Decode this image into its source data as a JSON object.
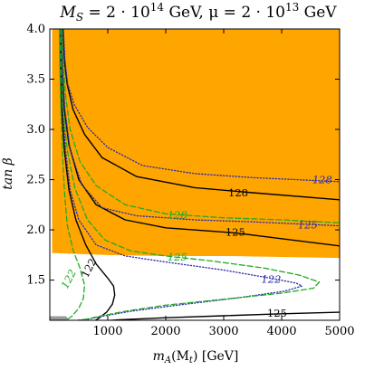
{
  "chart_data": {
    "type": "line",
    "title_parts": [
      "M",
      "S",
      " = 2 · 10",
      "14",
      " GeV, μ = 2 · 10",
      "13",
      " GeV"
    ],
    "xlabel_parts": [
      "m",
      "A",
      "(M",
      "t",
      ") [GeV]"
    ],
    "ylabel": "tan β",
    "xlim": [
      0,
      5000
    ],
    "ylim": [
      1.1,
      4.0
    ],
    "x_ticks": [
      1000,
      2000,
      3000,
      4000,
      5000
    ],
    "y_ticks": [
      1.5,
      2.0,
      2.5,
      3.0,
      3.5,
      4.0
    ],
    "x_tick_labels": [
      "1000",
      "2000",
      "3000",
      "4000",
      "5000"
    ],
    "y_tick_labels": [
      "1.5",
      "2.0",
      "2.5",
      "3.0",
      "3.5",
      "4.0"
    ],
    "grid": false,
    "colors": {
      "excluded_region": "#ffa500",
      "solid": "#000000",
      "dashed": "#22aa22",
      "dotted": "#2a2aaa",
      "gray_band": "#999999"
    },
    "regions": [
      {
        "color": "#ffa500",
        "polygon": [
          [
            40,
            4.0
          ],
          [
            5000,
            4.0
          ],
          [
            5000,
            1.72
          ],
          [
            3000,
            1.74
          ],
          [
            2000,
            1.74
          ],
          [
            1000,
            1.75
          ],
          [
            40,
            1.77
          ]
        ]
      },
      {
        "color": "#999999",
        "polygon": [
          [
            0,
            1.1
          ],
          [
            330,
            1.1
          ],
          [
            280,
            1.14
          ],
          [
            0,
            1.14
          ]
        ]
      }
    ],
    "series": [
      {
        "style": "solid",
        "label": "128",
        "label_at": [
          3250,
          2.37
        ],
        "color": "#000000",
        "points": [
          [
            225,
            4.0
          ],
          [
            250,
            3.7
          ],
          [
            300,
            3.45
          ],
          [
            400,
            3.2
          ],
          [
            600,
            2.95
          ],
          [
            900,
            2.72
          ],
          [
            1500,
            2.53
          ],
          [
            2500,
            2.42
          ],
          [
            3500,
            2.37
          ],
          [
            5000,
            2.3
          ]
        ]
      },
      {
        "style": "solid",
        "label": "125",
        "label_at": [
          3200,
          1.98
        ],
        "color": "#000000",
        "points": [
          [
            190,
            4.0
          ],
          [
            210,
            3.6
          ],
          [
            250,
            3.2
          ],
          [
            330,
            2.85
          ],
          [
            500,
            2.5
          ],
          [
            800,
            2.25
          ],
          [
            1300,
            2.1
          ],
          [
            2000,
            2.02
          ],
          [
            3200,
            1.97
          ],
          [
            5000,
            1.84
          ]
        ]
      },
      {
        "style": "solid",
        "label": "122",
        "label_at": [
          730,
          1.64
        ],
        "color": "#000000",
        "points": [
          [
            175,
            4.0
          ],
          [
            185,
            3.6
          ],
          [
            205,
            3.2
          ],
          [
            250,
            2.8
          ],
          [
            330,
            2.4
          ],
          [
            450,
            2.1
          ],
          [
            620,
            1.85
          ],
          [
            800,
            1.66
          ],
          [
            1000,
            1.52
          ],
          [
            1100,
            1.44
          ],
          [
            1120,
            1.35
          ],
          [
            1080,
            1.26
          ],
          [
            980,
            1.18
          ],
          [
            820,
            1.11
          ],
          [
            720,
            1.08
          ]
        ]
      },
      {
        "style": "solid",
        "label": "125",
        "label_at": [
          3920,
          1.17
        ],
        "color": "#000000",
        "points": [
          [
            550,
            1.08
          ],
          [
            1200,
            1.105
          ],
          [
            2000,
            1.125
          ],
          [
            3000,
            1.145
          ],
          [
            4000,
            1.165
          ],
          [
            5000,
            1.18
          ]
        ]
      },
      {
        "style": "dotted",
        "label": "128",
        "label_at": [
          4700,
          2.5
        ],
        "color": "#2a2aaa",
        "points": [
          [
            235,
            4.0
          ],
          [
            260,
            3.7
          ],
          [
            310,
            3.45
          ],
          [
            420,
            3.25
          ],
          [
            650,
            3.02
          ],
          [
            1000,
            2.82
          ],
          [
            1600,
            2.64
          ],
          [
            2500,
            2.56
          ],
          [
            3500,
            2.52
          ],
          [
            5000,
            2.48
          ]
        ]
      },
      {
        "style": "dotted",
        "label": "125",
        "label_at": [
          4450,
          2.05
        ],
        "color": "#2a2aaa",
        "points": [
          [
            195,
            4.0
          ],
          [
            220,
            3.6
          ],
          [
            260,
            3.2
          ],
          [
            350,
            2.8
          ],
          [
            550,
            2.45
          ],
          [
            900,
            2.22
          ],
          [
            1500,
            2.14
          ],
          [
            2500,
            2.1
          ],
          [
            3500,
            2.08
          ],
          [
            5000,
            2.04
          ]
        ]
      },
      {
        "style": "dotted",
        "label": "122",
        "label_at": [
          3820,
          1.51
        ],
        "color": "#2a2aaa",
        "points": [
          [
            180,
            4.0
          ],
          [
            195,
            3.6
          ],
          [
            220,
            3.2
          ],
          [
            270,
            2.8
          ],
          [
            350,
            2.4
          ],
          [
            500,
            2.1
          ],
          [
            800,
            1.85
          ],
          [
            1300,
            1.74
          ],
          [
            2000,
            1.68
          ],
          [
            3000,
            1.6
          ],
          [
            3800,
            1.52
          ],
          [
            4250,
            1.47
          ],
          [
            4350,
            1.44
          ],
          [
            4050,
            1.39
          ],
          [
            3200,
            1.32
          ],
          [
            2200,
            1.25
          ],
          [
            1400,
            1.19
          ],
          [
            900,
            1.14
          ],
          [
            650,
            1.11
          ],
          [
            500,
            1.1
          ]
        ]
      },
      {
        "style": "dashed",
        "label": "128",
        "label_at": [
          2200,
          2.15
        ],
        "color": "#22aa22",
        "points": [
          [
            210,
            4.0
          ],
          [
            230,
            3.7
          ],
          [
            270,
            3.35
          ],
          [
            350,
            3.0
          ],
          [
            520,
            2.68
          ],
          [
            800,
            2.44
          ],
          [
            1300,
            2.25
          ],
          [
            2000,
            2.16
          ],
          [
            3000,
            2.12
          ],
          [
            4000,
            2.1
          ],
          [
            5000,
            2.07
          ]
        ]
      },
      {
        "style": "dashed",
        "label": "125",
        "label_at": [
          2200,
          1.73
        ],
        "color": "#22aa22",
        "points": [
          [
            185,
            4.0
          ],
          [
            200,
            3.6
          ],
          [
            230,
            3.2
          ],
          [
            300,
            2.8
          ],
          [
            430,
            2.42
          ],
          [
            650,
            2.1
          ],
          [
            950,
            1.9
          ],
          [
            1400,
            1.79
          ],
          [
            2000,
            1.74
          ],
          [
            2800,
            1.69
          ],
          [
            3700,
            1.62
          ],
          [
            4300,
            1.55
          ],
          [
            4650,
            1.48
          ],
          [
            4550,
            1.42
          ],
          [
            4000,
            1.37
          ],
          [
            3000,
            1.31
          ],
          [
            2000,
            1.25
          ],
          [
            1300,
            1.19
          ],
          [
            850,
            1.14
          ],
          [
            620,
            1.11
          ],
          [
            480,
            1.1
          ]
        ]
      },
      {
        "style": "dashed",
        "label": "122",
        "label_at": [
          380,
          1.53
        ],
        "color": "#22aa22",
        "points": [
          [
            165,
            4.0
          ],
          [
            175,
            3.6
          ],
          [
            190,
            3.2
          ],
          [
            215,
            2.8
          ],
          [
            250,
            2.4
          ],
          [
            300,
            2.05
          ],
          [
            400,
            1.8
          ],
          [
            520,
            1.62
          ],
          [
            600,
            1.45
          ],
          [
            580,
            1.32
          ],
          [
            500,
            1.22
          ],
          [
            380,
            1.14
          ],
          [
            280,
            1.1
          ]
        ]
      }
    ]
  }
}
